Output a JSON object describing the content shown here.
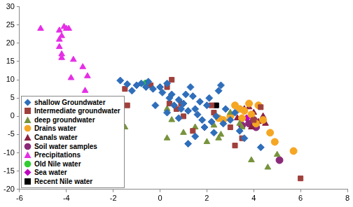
{
  "chart_data": {
    "type": "scatter",
    "legend": "bottom-left",
    "grid": false,
    "xlim": [
      -6,
      8
    ],
    "xticks": [
      -6,
      -4,
      -2,
      0,
      2,
      4,
      6,
      8
    ],
    "ylim": [
      -20,
      30
    ],
    "yticks": [
      -20,
      -15,
      -10,
      -5,
      0,
      5,
      10,
      15,
      20,
      25,
      30
    ],
    "series": [
      {
        "name": "shallow Groundwater",
        "color": "#2f6eba",
        "marker": "diamond",
        "x": [
          -1.7,
          -1.4,
          -1.2,
          -1,
          -0.8,
          -0.6,
          -0.5,
          -0.3,
          0,
          0.1,
          0.3,
          0.4,
          0.5,
          0.6,
          0.8,
          0.9,
          1,
          1.1,
          1.2,
          1.3,
          1.4,
          1.5,
          1.6,
          1.7,
          1.8,
          1.9,
          2,
          2.1,
          2.2,
          2.4,
          2.5,
          2.6,
          2.7,
          2.8,
          3,
          3.2,
          3.4,
          3.6,
          4.3,
          1.5,
          1.2,
          -0.2,
          0.3,
          0.8,
          2.3
        ],
        "values": [
          9.8,
          8.8,
          7,
          8.5,
          9,
          8,
          9.5,
          7.5,
          8,
          6.5,
          9,
          5,
          6,
          3,
          4.5,
          2,
          3.5,
          6,
          1.5,
          8,
          5.5,
          2,
          0.5,
          4,
          -1,
          -3,
          3,
          5,
          -1.5,
          0,
          7,
          8.5,
          -2,
          2,
          -1,
          1,
          -4,
          -6,
          -8.5,
          -5.5,
          -7.5,
          3,
          1,
          -0.5,
          -4.5
        ]
      },
      {
        "name": "Intermediate groundwater",
        "color": "#a0403c",
        "marker": "square",
        "x": [
          -1.5,
          -1.4,
          -0.4,
          0.3,
          0.4,
          0.5,
          0.7,
          0.9,
          1.4,
          2.2,
          2.3,
          3,
          3.5,
          3.2,
          4.3,
          4,
          6,
          1
        ],
        "values": [
          7.5,
          3,
          8.5,
          8,
          3.5,
          10,
          2,
          3.5,
          -4,
          3,
          1,
          -3,
          -6,
          -8,
          2.5,
          -1,
          -17,
          0
        ]
      },
      {
        "name": "deep groundwater",
        "color": "#77933c",
        "marker": "triangle",
        "x": [
          -1.5,
          0.3,
          0.5,
          0.3,
          1,
          1.5,
          2,
          2.3,
          2.5,
          2.6,
          3.4,
          3.9,
          4.6,
          5,
          3.5,
          3
        ],
        "values": [
          -3,
          2,
          -1,
          -6,
          -4.5,
          -3,
          -7,
          -2.5,
          -6,
          -5,
          -2,
          -12,
          -14,
          -10.5,
          -3,
          1
        ]
      },
      {
        "name": "Drains water",
        "color": "#f5a623",
        "marker": "circle",
        "x": [
          2.7,
          3,
          3.2,
          3.4,
          3.6,
          3.8,
          3.9,
          4.1,
          4.2,
          4.4,
          4.7,
          4.9,
          5.7,
          3.5,
          2.5
        ],
        "values": [
          -1,
          0,
          3,
          2,
          1.5,
          3.5,
          0.5,
          -2,
          3,
          -1,
          -4.5,
          -7,
          -9.5,
          -0.5,
          -0.5
        ]
      },
      {
        "name": "Canals water",
        "color": "#8b2040",
        "marker": "triangle",
        "x": [
          3.3,
          3.6,
          3.8,
          4,
          4.2,
          4.4,
          3.9,
          4.5
        ],
        "values": [
          -0.5,
          2,
          2.5,
          1,
          -1.5,
          0,
          -3,
          -2
        ]
      },
      {
        "name": "Soil water samples",
        "color": "#8b2a79",
        "marker": "circle",
        "x": [
          3.5,
          3.8,
          4,
          4.1,
          5.1
        ],
        "values": [
          -2.5,
          -2,
          -1,
          -3,
          -12
        ]
      },
      {
        "name": "Precipitations",
        "color": "#e62ee6",
        "marker": "triangle",
        "x": [
          -5.1,
          -4.3,
          -4.2,
          -4.3,
          -4.1,
          -3.9,
          -4.3,
          -4.2,
          -4.2,
          -3.7,
          -3.3,
          -3.8,
          -3.1,
          -3.2,
          -4
        ],
        "values": [
          24,
          23.5,
          22,
          21,
          24.5,
          24,
          19,
          17,
          16,
          15.5,
          13.5,
          10.5,
          11,
          7,
          24
        ]
      },
      {
        "name": "Old Nile water",
        "color": "#33cc33",
        "marker": "circle",
        "x": [
          -0.6
        ],
        "values": [
          9
        ]
      },
      {
        "name": "Sea water",
        "color": "#c000c0",
        "marker": "diamond",
        "x": [
          3.7
        ],
        "values": [
          -0.5
        ]
      },
      {
        "name": "Recent Nile water",
        "color": "#000000",
        "marker": "square",
        "x": [
          2.4
        ],
        "values": [
          3
        ]
      }
    ]
  }
}
